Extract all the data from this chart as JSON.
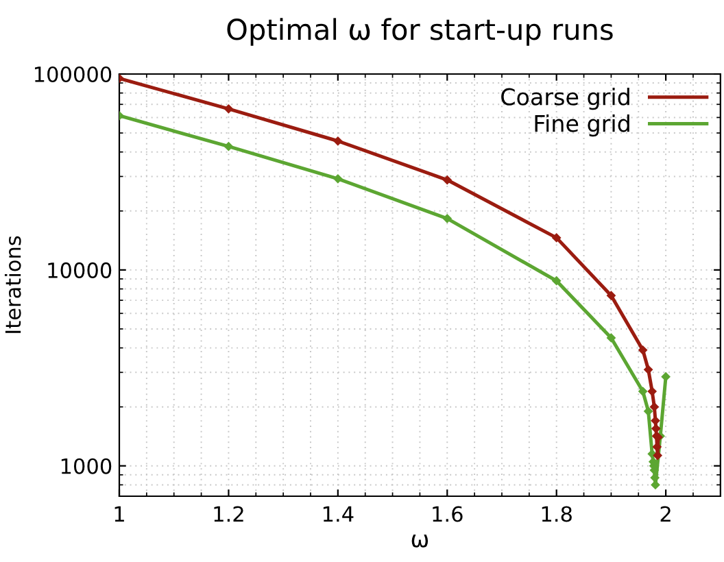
{
  "chart_data": {
    "type": "line",
    "title": "Optimal ω for start-up runs",
    "xlabel": "ω",
    "ylabel": "Iterations",
    "log": "y",
    "grid": true,
    "legend": "top right",
    "marker": "diamond",
    "line_style": "solid",
    "xlim": [
      1,
      2.1
    ],
    "xticks": [
      1,
      1.2,
      1.4,
      1.6,
      1.8,
      2
    ],
    "ylim": [
      700,
      100000
    ],
    "yticks": [
      1000,
      10000,
      100000
    ],
    "series": [
      {
        "name": "Coarse grid",
        "color": "#9b1c10",
        "x": [
          1,
          1.2,
          1.4,
          1.6,
          1.8,
          1.9,
          1.958,
          1.968,
          1.975,
          1.979,
          1.981,
          1.982,
          1.983,
          1.984,
          1.985,
          1.986
        ],
        "values": [
          95000,
          66400,
          45500,
          28800,
          14600,
          7400,
          3900,
          3100,
          2400,
          2000,
          1700,
          1550,
          1420,
          1250,
          1130,
          1400
        ]
      },
      {
        "name": "Fine grid",
        "color": "#5ca632",
        "x": [
          1,
          1.2,
          1.4,
          1.6,
          1.8,
          1.9,
          1.958,
          1.968,
          1.975,
          1.977,
          1.978,
          1.979,
          1.98,
          1.981,
          1.99,
          2.0
        ],
        "values": [
          61300,
          42700,
          29200,
          18300,
          8800,
          4500,
          2400,
          1900,
          1150,
          1050,
          1000,
          950,
          870,
          800,
          1420,
          2850
        ]
      }
    ]
  }
}
